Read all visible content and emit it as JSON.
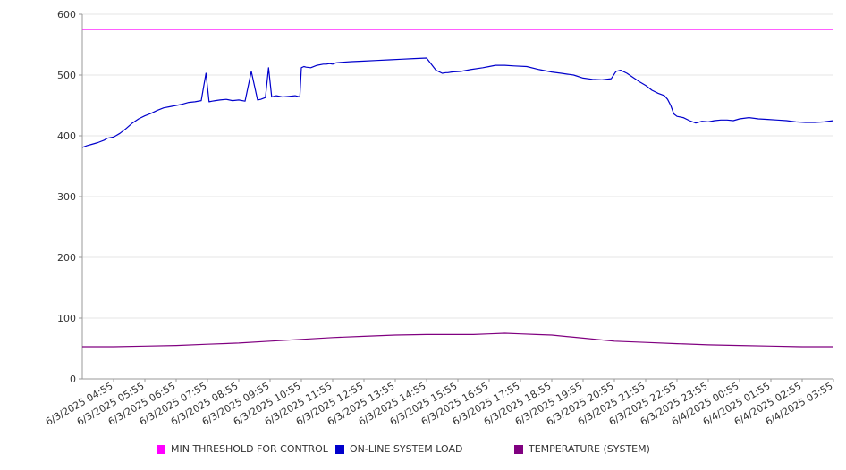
{
  "chart_data": {
    "type": "line",
    "title": "",
    "xlabel": "",
    "ylabel": "",
    "ylim": [
      0,
      600
    ],
    "y_ticks": [
      0,
      100,
      200,
      300,
      400,
      500,
      600
    ],
    "grid": "horizontal",
    "legend_position": "bottom",
    "x_tick_labels": [
      "6/3/2025 04:55",
      "6/3/2025 05:55",
      "6/3/2025 06:55",
      "6/3/2025 07:55",
      "6/3/2025 08:55",
      "6/3/2025 09:55",
      "6/3/2025 10:55",
      "6/3/2025 11:55",
      "6/3/2025 12:55",
      "6/3/2025 13:55",
      "6/3/2025 14:55",
      "6/3/2025 15:55",
      "6/3/2025 16:55",
      "6/3/2025 17:55",
      "6/3/2025 18:55",
      "6/3/2025 19:55",
      "6/3/2025 20:55",
      "6/3/2025 21:55",
      "6/3/2025 22:55",
      "6/3/2025 23:55",
      "6/4/2025 00:55",
      "6/4/2025 01:55",
      "6/4/2025 02:55",
      "6/4/2025 03:55"
    ],
    "x_range_hours": [
      0,
      24
    ],
    "series": [
      {
        "name": "MIN THRESHOLD FOR CONTROL",
        "color": "#ff00ff",
        "x": [
          0,
          24
        ],
        "values": [
          575,
          575
        ]
      },
      {
        "name": "ON-LINE SYSTEM LOAD",
        "color": "#0000cc",
        "x": [
          0,
          0.15,
          0.3,
          0.5,
          0.7,
          0.8,
          1.0,
          1.2,
          1.4,
          1.6,
          1.8,
          2.0,
          2.2,
          2.4,
          2.6,
          2.8,
          3.0,
          3.2,
          3.4,
          3.6,
          3.8,
          3.95,
          4.05,
          4.15,
          4.25,
          4.4,
          4.6,
          4.8,
          5.0,
          5.2,
          5.4,
          5.6,
          5.7,
          5.85,
          5.95,
          6.05,
          6.2,
          6.4,
          6.6,
          6.8,
          6.95,
          7.0,
          7.08,
          7.15,
          7.3,
          7.5,
          7.7,
          7.8,
          7.9,
          8.0,
          8.1,
          8.3,
          8.6,
          9.0,
          9.4,
          9.8,
          10.2,
          10.6,
          11.0,
          11.3,
          11.5,
          11.62,
          11.68,
          11.8,
          12.1,
          12.4,
          12.8,
          13.0,
          13.2,
          13.5,
          13.8,
          14.2,
          14.6,
          15.0,
          15.3,
          15.7,
          16.0,
          16.3,
          16.6,
          16.9,
          17.05,
          17.2,
          17.4,
          17.6,
          17.8,
          18.0,
          18.2,
          18.4,
          18.6,
          18.7,
          18.8,
          18.9,
          19.0,
          19.2,
          19.4,
          19.6,
          19.8,
          20.0,
          20.2,
          20.4,
          20.6,
          20.8,
          21.0,
          21.3,
          21.6,
          21.9,
          22.2,
          22.5,
          22.8,
          23.1,
          23.4,
          23.7,
          24.0
        ],
        "values": [
          381,
          384,
          386,
          389,
          393,
          396,
          398,
          404,
          412,
          421,
          428,
          433,
          437,
          442,
          446,
          448,
          450,
          452,
          455,
          456,
          458,
          503,
          456,
          457,
          458,
          459,
          460,
          458,
          459,
          457,
          506,
          459,
          460,
          463,
          512,
          464,
          466,
          464,
          465,
          466,
          464,
          512,
          514,
          513,
          512,
          516,
          518,
          518,
          519,
          518,
          520,
          521,
          522,
          523,
          524,
          525,
          526,
          527,
          528,
          508,
          503,
          504,
          504,
          505,
          506,
          509,
          512,
          514,
          516,
          516,
          515,
          514,
          509,
          505,
          503,
          500,
          495,
          493,
          492,
          494,
          506,
          508,
          503,
          496,
          489,
          483,
          475,
          470,
          466,
          460,
          450,
          436,
          432,
          430,
          425,
          421,
          424,
          423,
          425,
          426,
          426,
          425,
          428,
          430,
          428,
          427,
          426,
          425,
          423,
          422,
          422,
          423,
          425
        ]
      },
      {
        "name": "TEMPERATURE (SYSTEM)",
        "color": "#800080",
        "x": [
          0,
          1,
          2,
          3,
          4,
          5,
          6,
          7,
          8,
          9,
          10,
          11,
          12,
          12.5,
          13,
          13.5,
          14,
          14.5,
          15,
          16,
          17,
          18,
          19,
          20,
          21,
          22,
          23,
          24
        ],
        "values": [
          53,
          53,
          54,
          55,
          57,
          59,
          62,
          65,
          68,
          70,
          72,
          73,
          73,
          73,
          74,
          75,
          74,
          73,
          72,
          67,
          62,
          60,
          58,
          56,
          55,
          54,
          53,
          53
        ]
      }
    ]
  },
  "legend": {
    "items": [
      {
        "label": "MIN THRESHOLD FOR CONTROL",
        "color": "#ff00ff"
      },
      {
        "label": "ON-LINE SYSTEM LOAD",
        "color": "#0000cc"
      },
      {
        "label": "TEMPERATURE (SYSTEM)",
        "color": "#800080"
      }
    ]
  }
}
